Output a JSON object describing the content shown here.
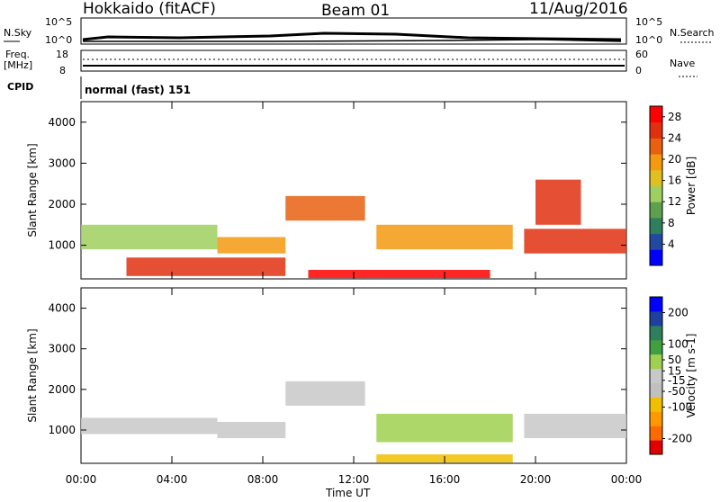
{
  "header": {
    "station": "Hokkaido (fitACF)",
    "beam": "Beam 01",
    "date": "11/Aug/2016"
  },
  "panels": {
    "nsky": {
      "label": "N.Sky",
      "ticks": [
        "10^5",
        "10^0"
      ],
      "right_ticks": [
        "10^5",
        "10^0"
      ],
      "right_label": "N.Search"
    },
    "freq": {
      "label": "Freq.",
      "unit": "[MHz]",
      "ticks": [
        "18",
        "8"
      ],
      "right_ticks": [
        "60",
        "0"
      ],
      "right_label": "Nave"
    },
    "cpid": {
      "label": "CPID",
      "text": "normal (fast) 151"
    }
  },
  "colors": {
    "power": [
      "#0000ff",
      "#204aa0",
      "#2f7f5f",
      "#5fa04f",
      "#9fcf5f",
      "#e0c020",
      "#f39a10",
      "#e86010",
      "#e03010",
      "#ff0000"
    ],
    "velocity": [
      "#e00000",
      "#ff6a00",
      "#ff9900",
      "#f0c000",
      "#c0c0c0",
      "#c8c8c8",
      "#a0d050",
      "#40a040",
      "#2f7f5f",
      "#2040a0",
      "#0000ff"
    ]
  },
  "chart_data": [
    {
      "type": "heatmap",
      "title": "",
      "xlabel": "Time UT",
      "ylabel": "Slant Range [km]",
      "xlim": [
        "00:00",
        "24:00"
      ],
      "ylim": [
        180,
        4500
      ],
      "x_ticks": [
        "00:00",
        "04:00",
        "08:00",
        "12:00",
        "16:00",
        "20:00",
        "00:00"
      ],
      "y_ticks": [
        1000,
        2000,
        3000,
        4000
      ],
      "colorbar": {
        "label": "Power [dB]",
        "ticks": [
          4,
          8,
          12,
          16,
          20,
          24,
          28
        ],
        "range": [
          0,
          30
        ]
      },
      "regions": [
        {
          "x": [
            0,
            6
          ],
          "y": [
            900,
            1500
          ],
          "value": 14
        },
        {
          "x": [
            6,
            9
          ],
          "y": [
            800,
            1200
          ],
          "value": 20
        },
        {
          "x": [
            9,
            12.5
          ],
          "y": [
            1600,
            2200
          ],
          "value": 22
        },
        {
          "x": [
            2,
            9
          ],
          "y": [
            250,
            700
          ],
          "value": 26
        },
        {
          "x": [
            13,
            19
          ],
          "y": [
            900,
            1500
          ],
          "value": 18
        },
        {
          "x": [
            19.5,
            24
          ],
          "y": [
            800,
            1400
          ],
          "value": 25
        },
        {
          "x": [
            20,
            22
          ],
          "y": [
            1500,
            2600
          ],
          "value": 26
        },
        {
          "x": [
            10,
            18
          ],
          "y": [
            200,
            400
          ],
          "value": 28
        }
      ]
    },
    {
      "type": "heatmap",
      "title": "",
      "xlabel": "Time UT",
      "ylabel": "Slant Range [km]",
      "xlim": [
        "00:00",
        "24:00"
      ],
      "ylim": [
        180,
        4500
      ],
      "x_ticks": [
        "00:00",
        "04:00",
        "08:00",
        "12:00",
        "16:00",
        "20:00",
        "00:00"
      ],
      "y_ticks": [
        1000,
        2000,
        3000,
        4000
      ],
      "colorbar": {
        "label": "Velocity [m s-1]",
        "ticks": [
          200,
          100,
          50,
          15,
          -15,
          -50,
          -100,
          -200
        ],
        "range": [
          -250,
          250
        ]
      },
      "regions": [
        {
          "x": [
            0,
            6
          ],
          "y": [
            900,
            1300
          ],
          "value": 0
        },
        {
          "x": [
            6,
            9
          ],
          "y": [
            800,
            1200
          ],
          "value": 0
        },
        {
          "x": [
            9,
            12.5
          ],
          "y": [
            1600,
            2200
          ],
          "value": 0
        },
        {
          "x": [
            13,
            19
          ],
          "y": [
            700,
            1400
          ],
          "value": 40
        },
        {
          "x": [
            19.5,
            24
          ],
          "y": [
            800,
            1400
          ],
          "value": -20
        },
        {
          "x": [
            13,
            19
          ],
          "y": [
            200,
            400
          ],
          "value": -80
        }
      ]
    }
  ]
}
